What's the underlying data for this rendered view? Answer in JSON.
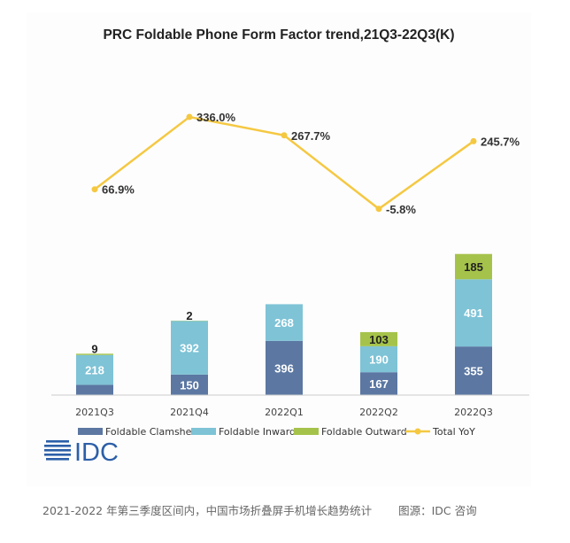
{
  "chart_data": {
    "type": "bar",
    "stacked": true,
    "title": "PRC Foldable Phone Form Factor trend,21Q3-22Q3(K)",
    "categories": [
      "2021Q3",
      "2021Q4",
      "2022Q1",
      "2022Q2",
      "2022Q3"
    ],
    "series": [
      {
        "name": "Foldable Clamshell",
        "color": "#5b77a2",
        "values": [
          null,
          150,
          396,
          167,
          355
        ]
      },
      {
        "name": "Foldable Inward",
        "color": "#7ec3d6",
        "values": [
          218,
          392,
          268,
          190,
          491
        ]
      },
      {
        "name": "Foldable Outward",
        "color": "#a5c34a",
        "values": [
          9,
          2,
          null,
          103,
          185
        ]
      }
    ],
    "clamshell_2021Q3_unlabeled": 75,
    "line_series": {
      "name": "Total YoY",
      "color": "#f5c842",
      "values": [
        66.9,
        336.0,
        267.7,
        -5.8,
        245.7
      ],
      "labels": [
        "66.9%",
        "336.0%",
        "267.7%",
        "-5.8%",
        "245.7%"
      ]
    },
    "legend_position": "bottom",
    "grid": false
  },
  "logo": {
    "text": "IDC"
  },
  "caption": {
    "description": "2021-2022 年第三季度区间内，中国市场折叠屏手机增长趋势统计",
    "source": "图源：IDC 咨询"
  }
}
